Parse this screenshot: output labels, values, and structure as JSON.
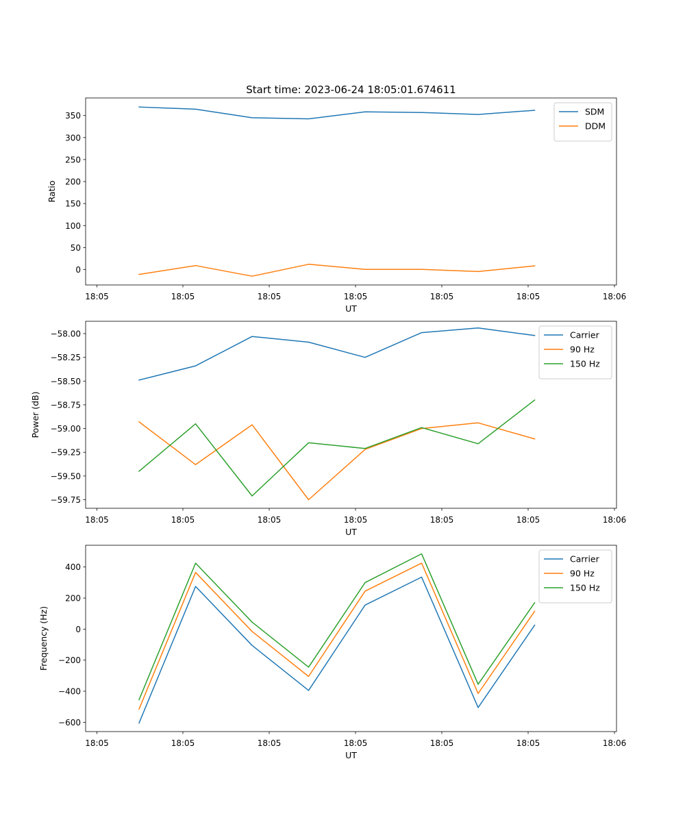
{
  "figure_title": "Start time: 2023-06-24 18:05:01.674611",
  "chart_data": [
    {
      "type": "line",
      "xlabel": "UT",
      "ylabel": "Ratio",
      "x_tick_labels": [
        "18:05",
        "18:05",
        "18:05",
        "18:05",
        "18:05",
        "18:05",
        "18:06"
      ],
      "ylim": [
        -35,
        390
      ],
      "y_ticks": [
        0,
        50,
        100,
        150,
        200,
        250,
        300,
        350
      ],
      "y_tick_labels": [
        "0",
        "50",
        "100",
        "150",
        "200",
        "250",
        "300",
        "350"
      ],
      "grid": false,
      "legend_position": "top-right",
      "series": [
        {
          "name": "SDM",
          "color": "#1f77b4",
          "values": [
            369.5,
            364.5,
            345,
            342.5,
            358.5,
            357,
            352.5,
            362
          ]
        },
        {
          "name": "DDM",
          "color": "#ff7f0e",
          "values": [
            -11,
            9,
            -15,
            12,
            0.5,
            0.5,
            -4.5,
            8.5
          ]
        }
      ]
    },
    {
      "type": "line",
      "xlabel": "UT",
      "ylabel": "Power (dB)",
      "x_tick_labels": [
        "18:05",
        "18:05",
        "18:05",
        "18:05",
        "18:05",
        "18:05",
        "18:06"
      ],
      "ylim": [
        -59.84,
        -57.87
      ],
      "y_ticks": [
        -59.75,
        -59.5,
        -59.25,
        -59.0,
        -58.75,
        -58.5,
        -58.25,
        -58.0
      ],
      "y_tick_labels": [
        "−59.75",
        "−59.50",
        "−59.25",
        "−59.00",
        "−58.75",
        "−58.50",
        "−58.25",
        "−58.00"
      ],
      "grid": false,
      "legend_position": "top-right",
      "series": [
        {
          "name": "Carrier",
          "color": "#1f77b4",
          "values": [
            -58.49,
            -58.34,
            -58.03,
            -58.09,
            -58.25,
            -57.99,
            -57.94,
            -58.02
          ]
        },
        {
          "name": "90 Hz",
          "color": "#ff7f0e",
          "values": [
            -58.93,
            -59.38,
            -58.96,
            -59.75,
            -59.22,
            -59.0,
            -58.94,
            -59.11
          ]
        },
        {
          "name": "150 Hz",
          "color": "#2ca02c",
          "values": [
            -59.45,
            -58.95,
            -59.71,
            -59.15,
            -59.21,
            -58.99,
            -59.16,
            -58.7
          ]
        }
      ]
    },
    {
      "type": "line",
      "xlabel": "UT",
      "ylabel": "Frequency (Hz)",
      "x_tick_labels": [
        "18:05",
        "18:05",
        "18:05",
        "18:05",
        "18:05",
        "18:05",
        "18:06"
      ],
      "ylim": [
        -660,
        540
      ],
      "y_ticks": [
        -600,
        -400,
        -200,
        0,
        200,
        400
      ],
      "y_tick_labels": [
        "−600",
        "−400",
        "−200",
        "0",
        "200",
        "400"
      ],
      "grid": false,
      "legend_position": "top-right",
      "series": [
        {
          "name": "Carrier",
          "color": "#1f77b4",
          "values": [
            -605,
            275,
            -105,
            -395,
            155,
            335,
            -505,
            25
          ]
        },
        {
          "name": "90 Hz",
          "color": "#ff7f0e",
          "values": [
            -515,
            365,
            -15,
            -305,
            245,
            425,
            -415,
            115
          ]
        },
        {
          "name": "150 Hz",
          "color": "#2ca02c",
          "values": [
            -455,
            425,
            45,
            -245,
            300,
            485,
            -355,
            170
          ]
        }
      ]
    }
  ]
}
